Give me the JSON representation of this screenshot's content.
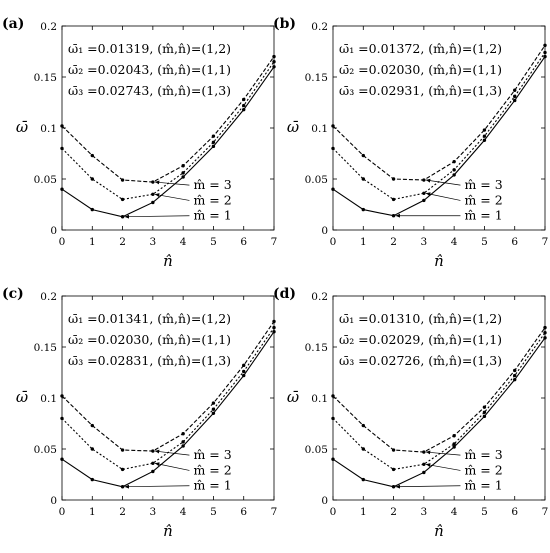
{
  "chart_data": [
    {
      "type": "line",
      "panel_label": "(a)",
      "xlabel": "n̂",
      "ylabel": "ω̄",
      "xlim": [
        0,
        7
      ],
      "ylim": [
        0,
        0.2
      ],
      "xticks": [
        "0",
        "1",
        "2",
        "3",
        "4",
        "5",
        "6",
        "7"
      ],
      "yticks": [
        "0",
        "0.05",
        "0.1",
        "0.15",
        "0.2"
      ],
      "x": [
        0,
        1,
        2,
        3,
        4,
        5,
        6,
        7
      ],
      "info": [
        "ω̄₁ =0.01319, (m̂,n̂)=(1,2)",
        "ω̄₂ =0.02043, (m̂,n̂)=(1,1)",
        "ω̄₃ =0.02743, (m̂,n̂)=(1,3)"
      ],
      "series": [
        {
          "name": "m̂ = 1",
          "style": "solid",
          "values": [
            0.04,
            0.02,
            0.013,
            0.027,
            0.052,
            0.082,
            0.118,
            0.16
          ]
        },
        {
          "name": "m̂ = 2",
          "style": "dotted",
          "values": [
            0.08,
            0.05,
            0.03,
            0.035,
            0.056,
            0.086,
            0.122,
            0.165
          ]
        },
        {
          "name": "m̂ = 3",
          "style": "dashed",
          "values": [
            0.102,
            0.073,
            0.049,
            0.047,
            0.063,
            0.092,
            0.128,
            0.17
          ]
        }
      ]
    },
    {
      "type": "line",
      "panel_label": "(b)",
      "xlabel": "n̂",
      "ylabel": "ω̄",
      "xlim": [
        0,
        7
      ],
      "ylim": [
        0,
        0.2
      ],
      "xticks": [
        "0",
        "1",
        "2",
        "3",
        "4",
        "5",
        "6",
        "7"
      ],
      "yticks": [
        "0",
        "0.05",
        "0.1",
        "0.15",
        "0.2"
      ],
      "x": [
        0,
        1,
        2,
        3,
        4,
        5,
        6,
        7
      ],
      "info": [
        "ω̄₁ =0.01372, (m̂,n̂)=(1,2)",
        "ω̄₂ =0.02030, (m̂,n̂)=(1,1)",
        "ω̄₃ =0.02931, (m̂,n̂)=(1,3)"
      ],
      "series": [
        {
          "name": "m̂ = 1",
          "style": "solid",
          "values": [
            0.04,
            0.02,
            0.014,
            0.029,
            0.054,
            0.088,
            0.127,
            0.17
          ]
        },
        {
          "name": "m̂ = 2",
          "style": "dotted",
          "values": [
            0.08,
            0.05,
            0.03,
            0.036,
            0.059,
            0.092,
            0.131,
            0.174
          ]
        },
        {
          "name": "m̂ = 3",
          "style": "dashed",
          "values": [
            0.102,
            0.073,
            0.05,
            0.049,
            0.067,
            0.098,
            0.137,
            0.181
          ]
        }
      ]
    },
    {
      "type": "line",
      "panel_label": "(c)",
      "xlabel": "n̂",
      "ylabel": "ω̄",
      "xlim": [
        0,
        7
      ],
      "ylim": [
        0,
        0.2
      ],
      "xticks": [
        "0",
        "1",
        "2",
        "3",
        "4",
        "5",
        "6",
        "7"
      ],
      "yticks": [
        "0",
        "0.05",
        "0.1",
        "0.15",
        "0.2"
      ],
      "x": [
        0,
        1,
        2,
        3,
        4,
        5,
        6,
        7
      ],
      "info": [
        "ω̄₁ =0.01341, (m̂,n̂)=(1,2)",
        "ω̄₂ =0.02030, (m̂,n̂)=(1,1)",
        "ω̄₃ =0.02831, (m̂,n̂)=(1,3)"
      ],
      "series": [
        {
          "name": "m̂ = 1",
          "style": "solid",
          "values": [
            0.04,
            0.02,
            0.013,
            0.028,
            0.053,
            0.085,
            0.122,
            0.165
          ]
        },
        {
          "name": "m̂ = 2",
          "style": "dotted",
          "values": [
            0.08,
            0.05,
            0.03,
            0.036,
            0.057,
            0.089,
            0.126,
            0.169
          ]
        },
        {
          "name": "m̂ = 3",
          "style": "dashed",
          "values": [
            0.102,
            0.073,
            0.049,
            0.048,
            0.065,
            0.095,
            0.132,
            0.175
          ]
        }
      ]
    },
    {
      "type": "line",
      "panel_label": "(d)",
      "xlabel": "n̂",
      "ylabel": "ω̄",
      "xlim": [
        0,
        7
      ],
      "ylim": [
        0,
        0.2
      ],
      "xticks": [
        "0",
        "1",
        "2",
        "3",
        "4",
        "5",
        "6",
        "7"
      ],
      "yticks": [
        "0",
        "0.05",
        "0.1",
        "0.15",
        "0.2"
      ],
      "x": [
        0,
        1,
        2,
        3,
        4,
        5,
        6,
        7
      ],
      "info": [
        "ω̄₁ =0.01310, (m̂,n̂)=(1,2)",
        "ω̄₂ =0.02029, (m̂,n̂)=(1,1)",
        "ω̄₃ =0.02726, (m̂,n̂)=(1,3)"
      ],
      "series": [
        {
          "name": "m̂ = 1",
          "style": "solid",
          "values": [
            0.04,
            0.02,
            0.013,
            0.027,
            0.052,
            0.082,
            0.118,
            0.159
          ]
        },
        {
          "name": "m̂ = 2",
          "style": "dotted",
          "values": [
            0.08,
            0.05,
            0.03,
            0.035,
            0.055,
            0.086,
            0.122,
            0.164
          ]
        },
        {
          "name": "m̂ = 3",
          "style": "dashed",
          "values": [
            0.102,
            0.073,
            0.049,
            0.047,
            0.063,
            0.091,
            0.127,
            0.169
          ]
        }
      ]
    }
  ]
}
